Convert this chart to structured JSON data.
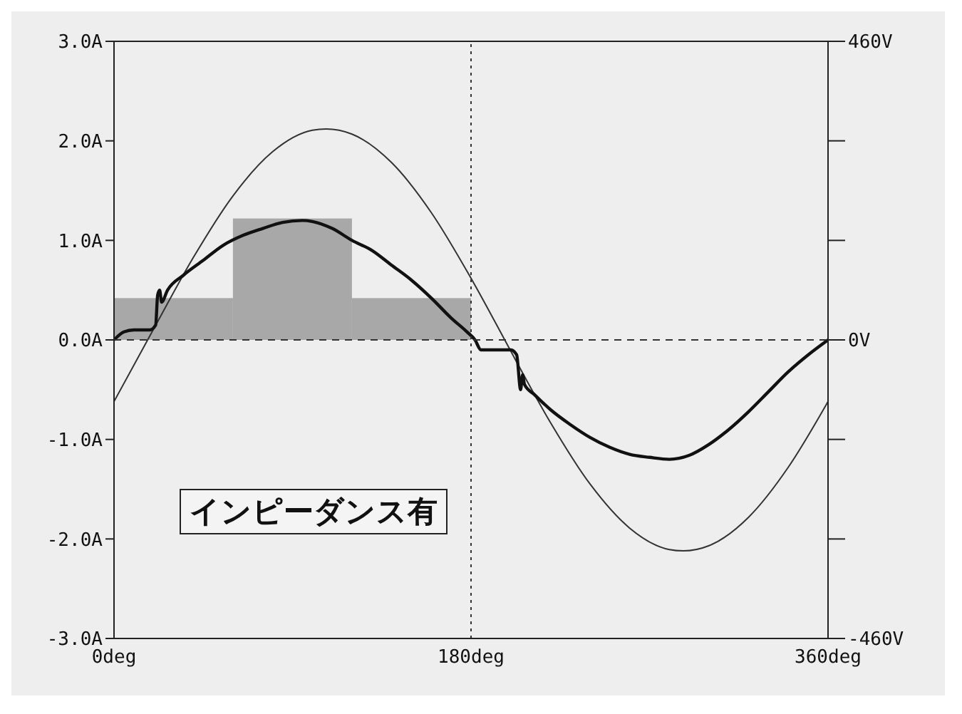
{
  "chart_data": {
    "type": "line",
    "annotations": [
      "インピーダンス有"
    ],
    "xlim": [
      0,
      360
    ],
    "xticks": [
      {
        "value": 0,
        "label": "0deg"
      },
      {
        "value": 180,
        "label": "180deg"
      },
      {
        "value": 360,
        "label": "360deg"
      }
    ],
    "ylim": [
      -3,
      3
    ],
    "yticks": [
      {
        "value": -3,
        "label": "-3.0A"
      },
      {
        "value": -2,
        "label": "-2.0A"
      },
      {
        "value": -1,
        "label": "-1.0A"
      },
      {
        "value": 0,
        "label": "0.0A"
      },
      {
        "value": 1,
        "label": "1.0A"
      },
      {
        "value": 2,
        "label": "2.0A"
      },
      {
        "value": 3,
        "label": "3.0A"
      }
    ],
    "y2lim": [
      -460,
      460
    ],
    "y2ticks": [
      {
        "value": -460,
        "label": "-460V"
      },
      {
        "value": -306.7,
        "label": null
      },
      {
        "value": -153.3,
        "label": null
      },
      {
        "value": 0,
        "label": "0V"
      },
      {
        "value": 153.3,
        "label": null
      },
      {
        "value": 306.7,
        "label": null
      },
      {
        "value": 460,
        "label": "460V"
      }
    ],
    "series": [
      {
        "type": "bar",
        "color": "#a8a8a8",
        "x": [
          30,
          90,
          150
        ],
        "values": [
          0.42,
          1.22,
          0.42
        ]
      },
      {
        "color": "#333333",
        "axis": "y2",
        "x": [
          0,
          20,
          40,
          60,
          80,
          100,
          107,
          120,
          140,
          160,
          180,
          197,
          200,
          220,
          240,
          260,
          280,
          287,
          300,
          320,
          340,
          360
        ],
        "values": [
          -95,
          17,
          127,
          222,
          290,
          323,
          325,
          317,
          273,
          196,
          95,
          0,
          -17,
          -127,
          -222,
          -290,
          -323,
          -325,
          -317,
          -273,
          -196,
          -95
        ]
      },
      {
        "color": "#111111",
        "x": [
          0,
          5,
          10,
          18,
          21,
          22,
          23,
          24,
          27,
          35,
          45,
          55,
          65,
          75,
          85,
          95,
          100,
          110,
          120,
          130,
          140,
          150,
          160,
          170,
          178,
          182,
          185,
          200,
          203,
          205,
          206,
          207,
          212,
          220,
          230,
          240,
          250,
          260,
          270,
          280,
          290,
          300,
          310,
          320,
          330,
          340,
          350,
          360
        ],
        "values": [
          0,
          0.08,
          0.1,
          0.1,
          0.15,
          0.45,
          0.5,
          0.38,
          0.5,
          0.65,
          0.8,
          0.95,
          1.05,
          1.12,
          1.18,
          1.2,
          1.19,
          1.12,
          1.0,
          0.9,
          0.75,
          0.6,
          0.42,
          0.22,
          0.08,
          0,
          -0.1,
          -0.1,
          -0.15,
          -0.5,
          -0.35,
          -0.45,
          -0.55,
          -0.7,
          -0.85,
          -0.98,
          -1.08,
          -1.15,
          -1.18,
          -1.2,
          -1.16,
          -1.05,
          -0.9,
          -0.72,
          -0.52,
          -0.32,
          -0.15,
          0
        ]
      }
    ],
    "ref_lines": [
      {
        "axis": "x",
        "value": 180,
        "line_style": "dotted",
        "color": "#333333"
      },
      {
        "axis": "y",
        "value": 0,
        "line_style": "dashed",
        "color": "#333333"
      }
    ],
    "grid": false,
    "legend": false,
    "marker": "none"
  }
}
